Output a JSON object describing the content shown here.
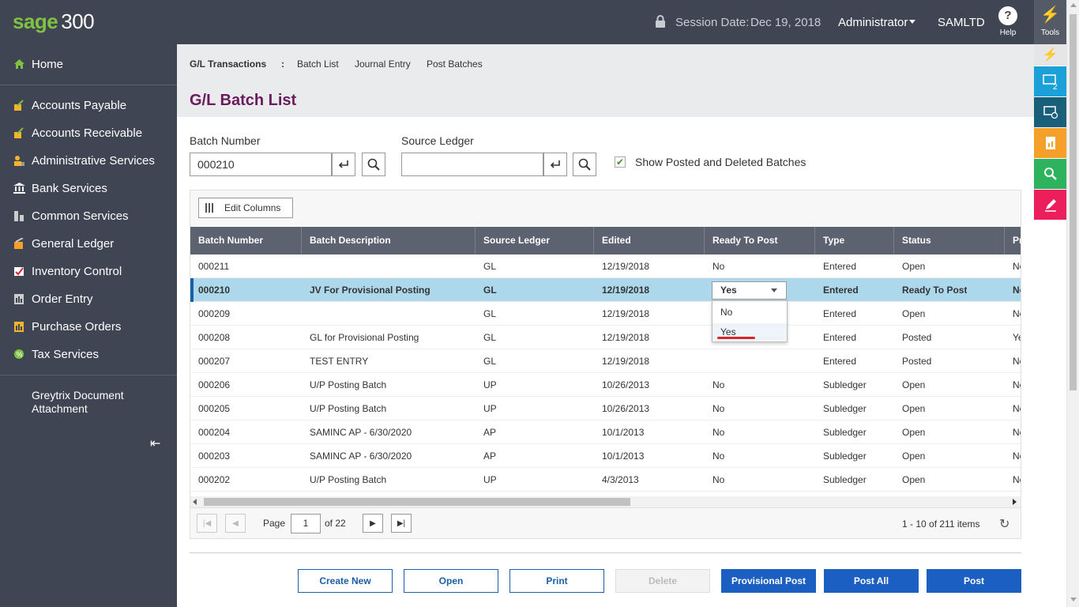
{
  "header": {
    "logo_brand": "sage",
    "logo_version": "300",
    "session_label": "Session Date:",
    "session_date": "Dec 19, 2018",
    "user": "Administrator",
    "company": "SAMLTD",
    "help_label": "Help",
    "tools_label": "Tools"
  },
  "sidebar": {
    "home": "Home",
    "items": [
      {
        "label": "Accounts Payable",
        "icon": "accounts-payable-icon"
      },
      {
        "label": "Accounts Receivable",
        "icon": "accounts-receivable-icon"
      },
      {
        "label": "Administrative Services",
        "icon": "administrative-services-icon"
      },
      {
        "label": "Bank Services",
        "icon": "bank-icon"
      },
      {
        "label": "Common Services",
        "icon": "common-services-icon"
      },
      {
        "label": "General Ledger",
        "icon": "general-ledger-icon"
      },
      {
        "label": "Inventory Control",
        "icon": "inventory-control-icon"
      },
      {
        "label": "Order Entry",
        "icon": "order-entry-icon"
      },
      {
        "label": "Purchase Orders",
        "icon": "purchase-orders-icon"
      },
      {
        "label": "Tax Services",
        "icon": "tax-services-icon"
      }
    ],
    "extra_line1": "Greytrix Document",
    "extra_line2": "Attachment"
  },
  "toolstrip": {
    "windows_badge": "2",
    "colors": {
      "windows": "#1ba1d8",
      "history": "#1a5f7a",
      "reports": "#f5a02a",
      "search": "#2db35d",
      "notes": "#ec1f5c"
    }
  },
  "breadcrumb": {
    "root": "G/L Transactions",
    "sep": ":",
    "links": [
      "Batch List",
      "Journal Entry",
      "Post Batches"
    ]
  },
  "page_title": "G/L Batch List",
  "filters": {
    "batch_number_label": "Batch Number",
    "batch_number_value": "000210",
    "source_ledger_label": "Source Ledger",
    "source_ledger_value": "",
    "show_posted_label": "Show Posted and Deleted Batches",
    "show_posted_checked": true
  },
  "grid": {
    "edit_columns_label": "Edit Columns",
    "columns": [
      "Batch Number",
      "Batch Description",
      "Source Ledger",
      "Edited",
      "Ready To Post",
      "Type",
      "Status",
      "Pr"
    ],
    "rows": [
      [
        "000211",
        "",
        "GL",
        "12/19/2018",
        "No",
        "Entered",
        "Open",
        "No"
      ],
      [
        "000210",
        "JV For Provisional Posting",
        "GL",
        "12/19/2018",
        "",
        "Entered",
        "Ready To Post",
        "No"
      ],
      [
        "000209",
        "",
        "GL",
        "12/19/2018",
        "",
        "Entered",
        "Open",
        "No"
      ],
      [
        "000208",
        "GL for Provisional Posting",
        "GL",
        "12/19/2018",
        "",
        "Entered",
        "Posted",
        "Yes"
      ],
      [
        "000207",
        "TEST ENTRY",
        "GL",
        "12/19/2018",
        "",
        "Entered",
        "Posted",
        "No"
      ],
      [
        "000206",
        "U/P Posting Batch",
        "UP",
        "10/26/2013",
        "No",
        "Subledger",
        "Open",
        "No"
      ],
      [
        "000205",
        "U/P Posting Batch",
        "UP",
        "10/26/2013",
        "No",
        "Subledger",
        "Open",
        "No"
      ],
      [
        "000204",
        "SAMINC AP - 6/30/2020",
        "AP",
        "10/1/2013",
        "No",
        "Subledger",
        "Open",
        "No"
      ],
      [
        "000203",
        "SAMINC AP - 6/30/2020",
        "AP",
        "10/1/2013",
        "No",
        "Subledger",
        "Open",
        "No"
      ],
      [
        "000202",
        "U/P Posting Batch",
        "UP",
        "4/3/2013",
        "No",
        "Subledger",
        "Open",
        "No"
      ]
    ],
    "selected_row": 1,
    "dropdown": {
      "value": "Yes",
      "options": [
        "No",
        "Yes"
      ]
    }
  },
  "pager": {
    "page_label": "Page",
    "page": "1",
    "of_label": "of 22",
    "items_label": "1 - 10 of 211 items"
  },
  "actions": {
    "create_new": "Create New",
    "open": "Open",
    "print": "Print",
    "delete": "Delete",
    "provisional_post": "Provisional Post",
    "post_all": "Post All",
    "post": "Post"
  }
}
